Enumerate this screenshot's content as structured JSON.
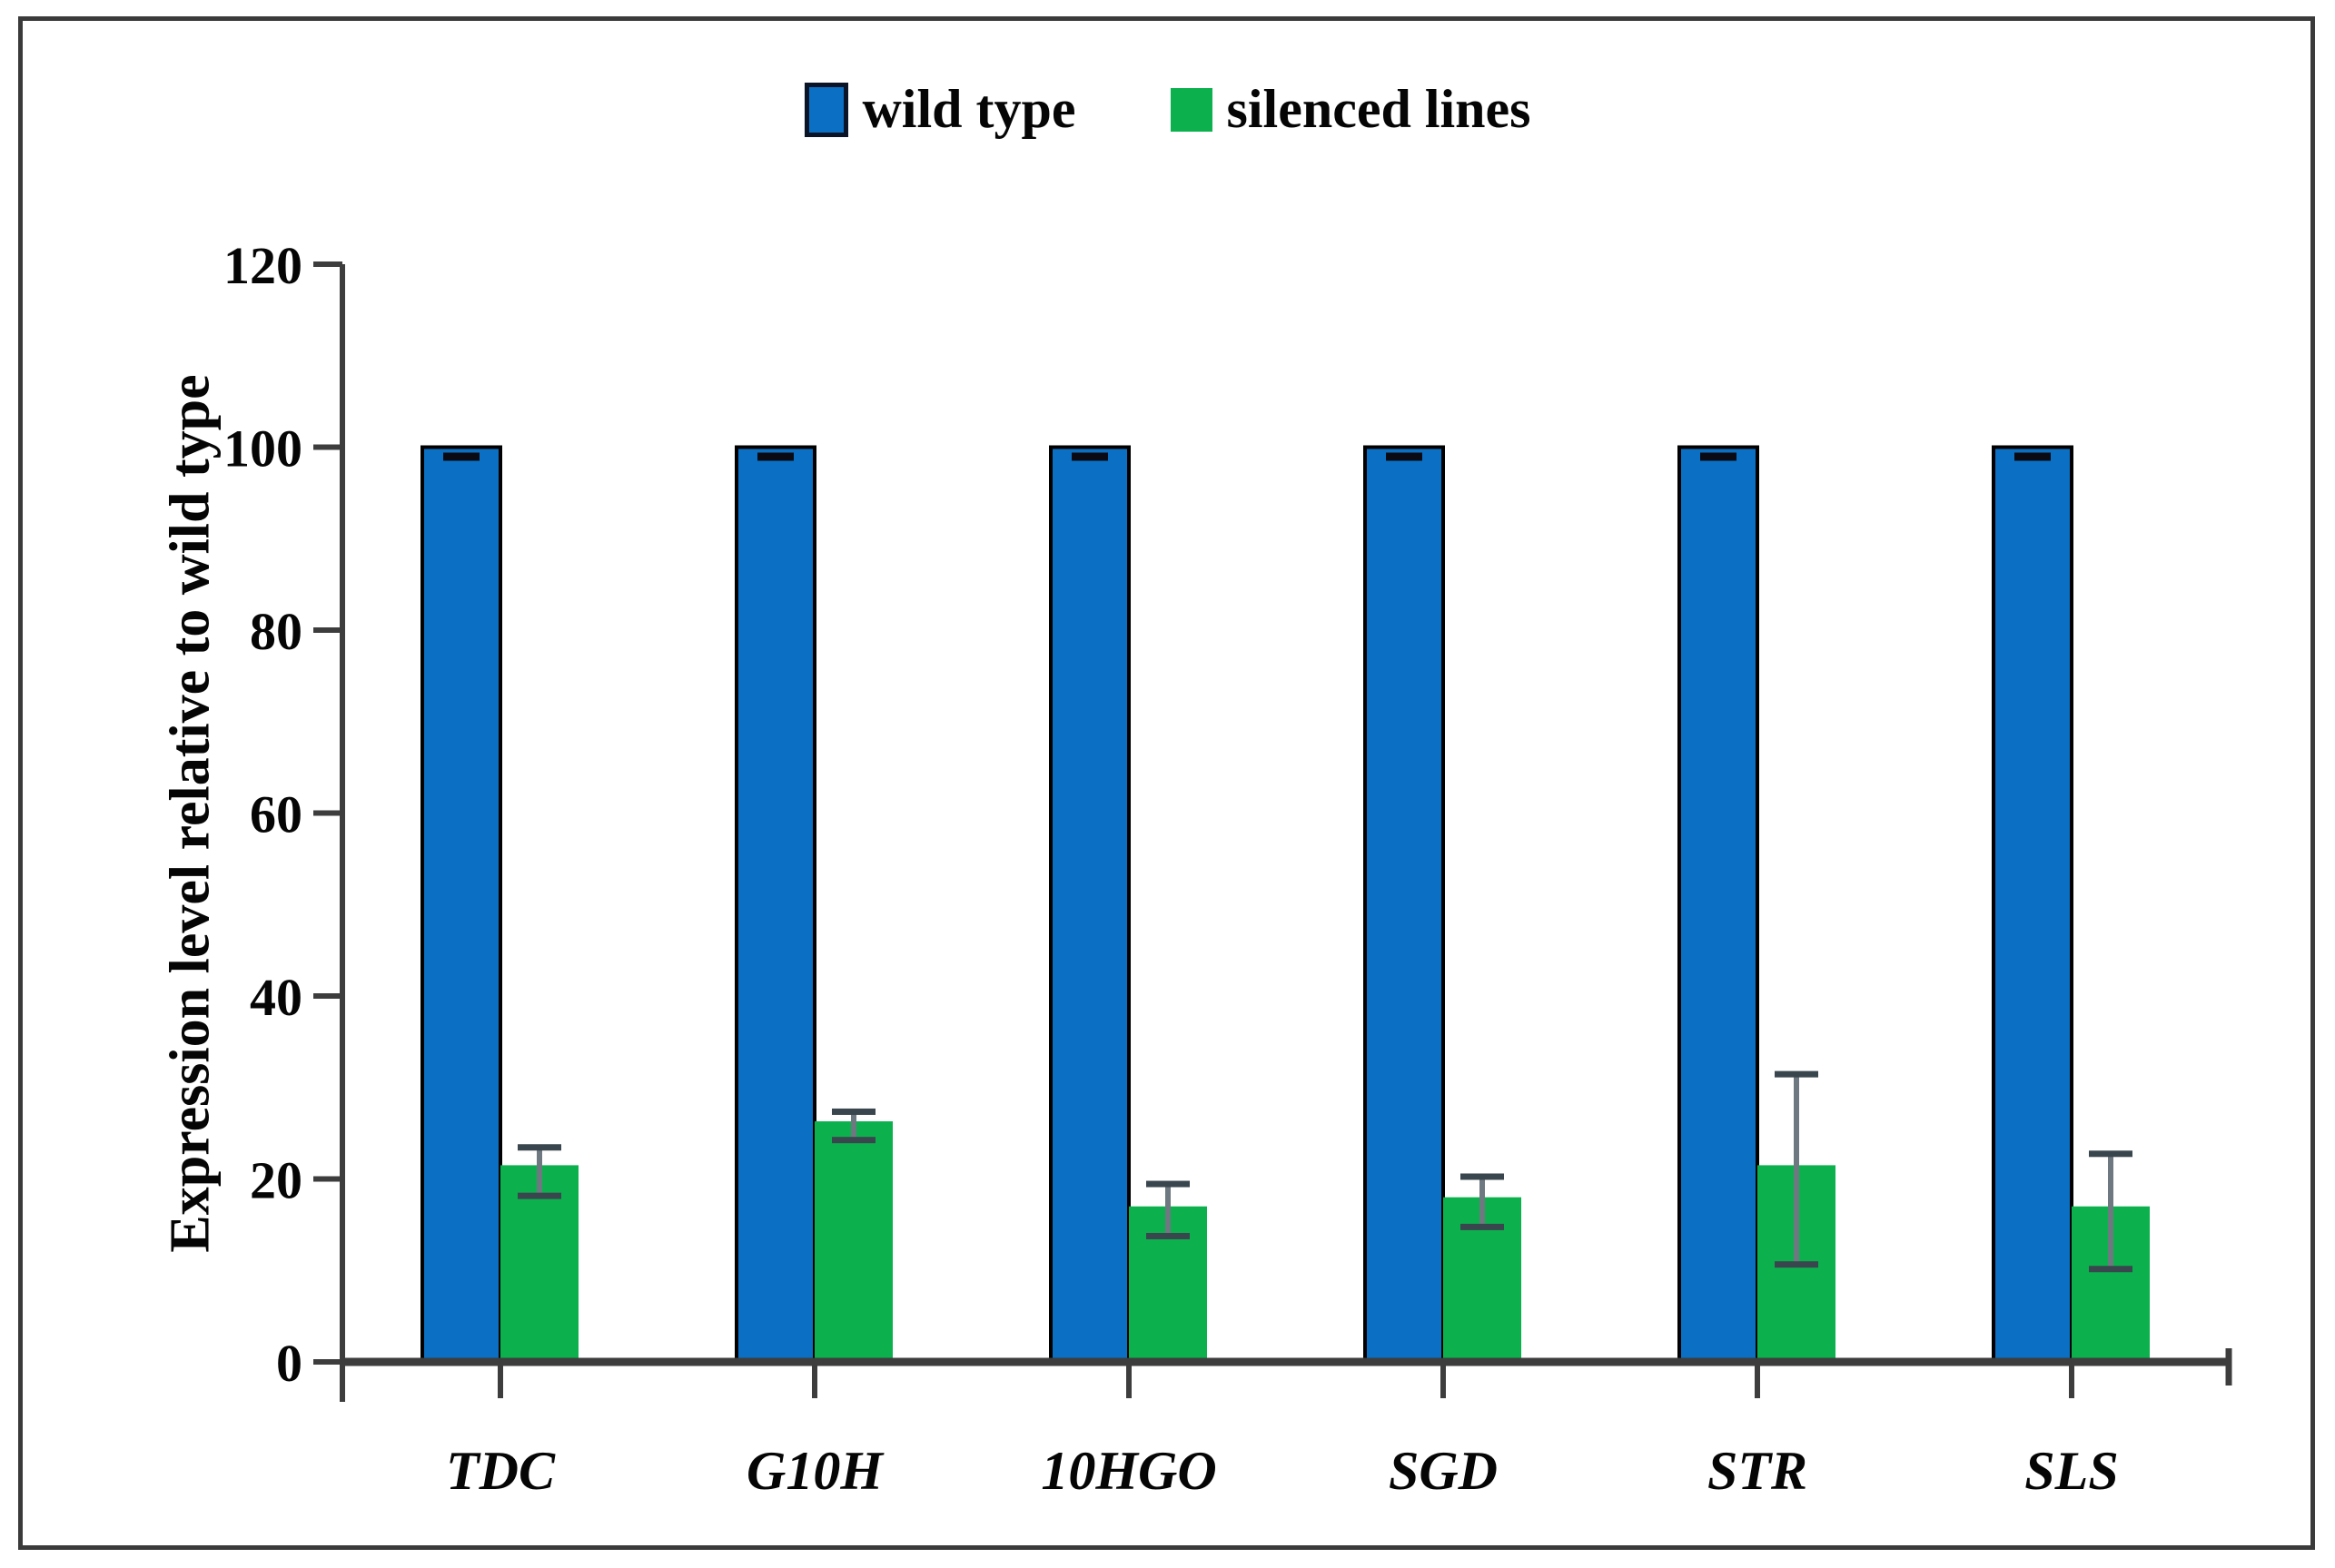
{
  "legend": {
    "items": [
      {
        "label": "wild type",
        "color": "#0B70C4"
      },
      {
        "label": "silenced lines",
        "color": "#0CB14E"
      }
    ]
  },
  "y_axis_title": "Expression level relative to wild type",
  "chart_data": {
    "type": "bar",
    "title": "",
    "xlabel": "",
    "ylabel": "Expression level relative to wild type",
    "ylim": [
      0,
      120
    ],
    "yticks": [
      0,
      20,
      40,
      60,
      80,
      100,
      120
    ],
    "categories": [
      "TDC",
      "G10H",
      "10HGO",
      "SGD",
      "STR",
      "SLS"
    ],
    "grid": false,
    "legend_position": "top-center",
    "series": [
      {
        "name": "wild type",
        "color": "#0B70C4",
        "values": [
          100,
          100,
          100,
          100,
          100,
          100
        ],
        "error_low": [
          99.5,
          99.5,
          99.5,
          99.5,
          99.5,
          99.5
        ],
        "error_high": [
          100,
          100,
          100,
          100,
          100,
          100
        ]
      },
      {
        "name": "silenced lines",
        "color": "#0CB14E",
        "values": [
          21.5,
          26.3,
          17.0,
          18.0,
          21.5,
          17.0
        ],
        "error_low": [
          18.2,
          24.3,
          13.8,
          14.8,
          10.7,
          10.2
        ],
        "error_high": [
          23.5,
          27.4,
          19.5,
          20.3,
          31.5,
          22.8
        ]
      }
    ],
    "style": {
      "axis_color": "#3d3d3d",
      "error_line_color": "#6e7880",
      "error_cap_color": "#3a464e",
      "wild_cap_color": "#0a0a14",
      "bar_outline_color": "#000000",
      "text_color": "#050505"
    }
  }
}
